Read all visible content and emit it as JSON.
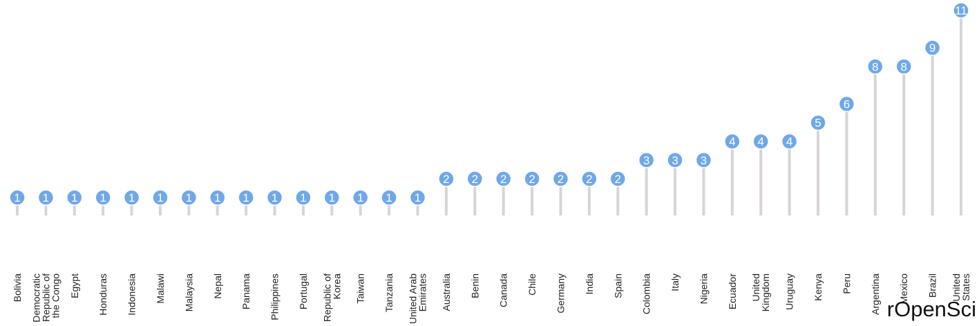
{
  "brand": "rOpenSci",
  "colors": {
    "stem": "#d9d4d4",
    "dot": "#6fa8e8",
    "dot_stroke": "#ffffff",
    "label_text": "#ffffff",
    "axis_text": "#222222"
  },
  "chart_data": {
    "type": "lollipop",
    "title": "",
    "xlabel": "",
    "ylabel": "",
    "ylim": [
      0,
      11
    ],
    "grid": false,
    "legend": "none",
    "categories": [
      [
        "Bolivia"
      ],
      [
        "Democratic",
        "Republic of",
        "the Congo"
      ],
      [
        "Egypt"
      ],
      [
        "Honduras"
      ],
      [
        "Indonesia"
      ],
      [
        "Malawi"
      ],
      [
        "Malaysia"
      ],
      [
        "Nepal"
      ],
      [
        "Panama"
      ],
      [
        "Philippines"
      ],
      [
        "Portugal"
      ],
      [
        "Republic of",
        "Korea"
      ],
      [
        "Taiwan"
      ],
      [
        "Tanzania"
      ],
      [
        "United Arab",
        "Emirates"
      ],
      [
        "Australia"
      ],
      [
        "Benin"
      ],
      [
        "Canada"
      ],
      [
        "Chile"
      ],
      [
        "Germany"
      ],
      [
        "India"
      ],
      [
        "Spain"
      ],
      [
        "Colombia"
      ],
      [
        "Italy"
      ],
      [
        "Nigeria"
      ],
      [
        "Ecuador"
      ],
      [
        "United",
        "Kingdom"
      ],
      [
        "Uruguay"
      ],
      [
        "Kenya"
      ],
      [
        "Peru"
      ],
      [
        "Argentina"
      ],
      [
        "Mexico"
      ],
      [
        "Brazil"
      ],
      [
        "United",
        "States"
      ]
    ],
    "values": [
      1,
      1,
      1,
      1,
      1,
      1,
      1,
      1,
      1,
      1,
      1,
      1,
      1,
      1,
      1,
      2,
      2,
      2,
      2,
      2,
      2,
      2,
      3,
      3,
      3,
      4,
      4,
      4,
      5,
      6,
      8,
      8,
      9,
      11
    ]
  }
}
